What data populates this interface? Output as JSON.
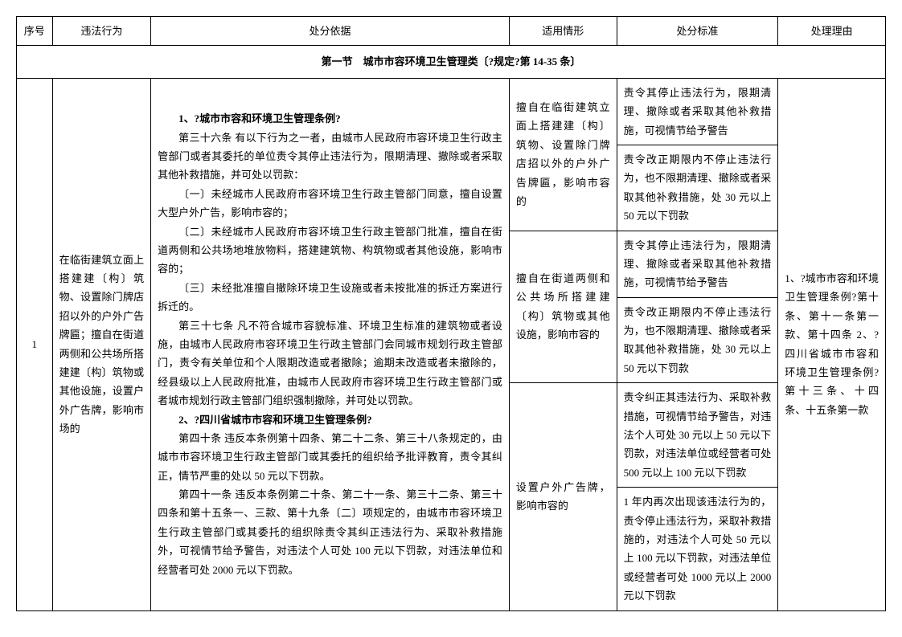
{
  "header": {
    "col1": "序号",
    "col2": "违法行为",
    "col3": "处分依据",
    "col4": "适用情形",
    "col5": "处分标准",
    "col6": "处理理由"
  },
  "section_title": "第一节　城市市容环境卫生管理类〔?规定?第 14-35 条〕",
  "row": {
    "seq": "1",
    "violation": "在临街建筑立面上搭建建〔构〕筑物、设置除门牌店招以外的户外广告牌匾；擅自在街道两侧和公共场所搭建建〔构〕筑物或其他设施，设置户外广告牌，影响市场的",
    "basis_title1": "1、?城市市容和环境卫生管理条例?",
    "basis_p1": "第三十六条 有以下行为之一者，由城市人民政府市容环境卫生行政主管部门或者其委托的单位责令其停止违法行为，限期清理、撤除或者采取其他补救措施，并可处以罚款：",
    "basis_p2": "〔一〕未经城市人民政府市容环境卫生行政主管部门同意，擅自设置大型户外广告，影响市容的；",
    "basis_p3": "〔二〕未经城市人民政府市容环境卫生行政主管部门批准，擅自在街道两侧和公共场地堆放物料，搭建建筑物、构筑物或者其他设施，影响市容的；",
    "basis_p4": "〔三〕未经批准擅自撤除环境卫生设施或者未按批准的拆迁方案进行拆迁的。",
    "basis_p5": "第三十七条 凡不符合城市容貌标准、环境卫生标准的建筑物或者设施，由城市人民政府市容环境卫生行政主管部门会同城市规划行政主管部门，责令有关单位和个人限期改造或者撤除；逾期未改造或者未撤除的，经县级以上人民政府批准，由城市人民政府市容环境卫生行政主管部门或者城市规划行政主管部门组织强制撤除，并可处以罚款。",
    "basis_title2": "2、?四川省城市市容和环境卫生管理条例?",
    "basis_p6": "第四十条 违反本条例第十四条、第二十二条、第三十八条规定的，由城市市容环境卫生行政主管部门或其委托的组织给予批评教育，责令其纠正，情节严重的处以 50 元以下罚款。",
    "basis_p7": "第四十一条 违反本条例第二十条、第二十一条、第三十二条、第三十四条和第十五条一、三款、第十九条〔二〕项规定的，由城市市容环境卫生行政主管部门或其委托的组织除责令其纠正违法行为、采取补救措施外，可视情节给予警告，对违法个人可处 100 元以下罚款，对违法单位和经营者可处 2000 元以下罚款。",
    "circ1": "擅自在临街建筑立面上搭建建〔构〕筑物、设置除门牌店招以外的户外广告牌匾，影响市容的",
    "circ2": "擅自在街道两侧和公共场所搭建建〔构〕筑物或其他设施，影响市容的",
    "circ3": "设置户外广告牌，影响市容的",
    "std1": "责令其停止违法行为，限期清理、撤除或者采取其他补救措施，可视情节给予警告",
    "std2": "责令改正期限内不停止违法行为，也不限期清理、撤除或者采取其他补救措施，处 30 元以上 50 元以下罚款",
    "std3": "责令其停止违法行为，限期清理、撤除或者采取其他补救措施，可视情节给予警告",
    "std4": "责令改正期限内不停止违法行为，也不限期清理、撤除或者采取其他补救措施，处 30 元以上 50 元以下罚款",
    "std5": "责令纠正其违法行为、采取补救措施，可视情节给予警告，对违法个人可处 30 元以上 50 元以下罚款，对违法单位或经营者可处 500 元以上 100 元以下罚款",
    "std6": "1 年内再次出现该违法行为的，责令停止违法行为，采取补救措施的，对违法个人可处 50 元以上 100 元以下罚款，对违法单位或经营者可处 1000 元以上 2000 元以下罚款",
    "reason": "1、?城市市容和环境卫生管理条例?第十条、第十一条第一款、第十四条 2、?四川省城市市容和环境卫生管理条例?第十三条、十四条、十五条第一款"
  }
}
